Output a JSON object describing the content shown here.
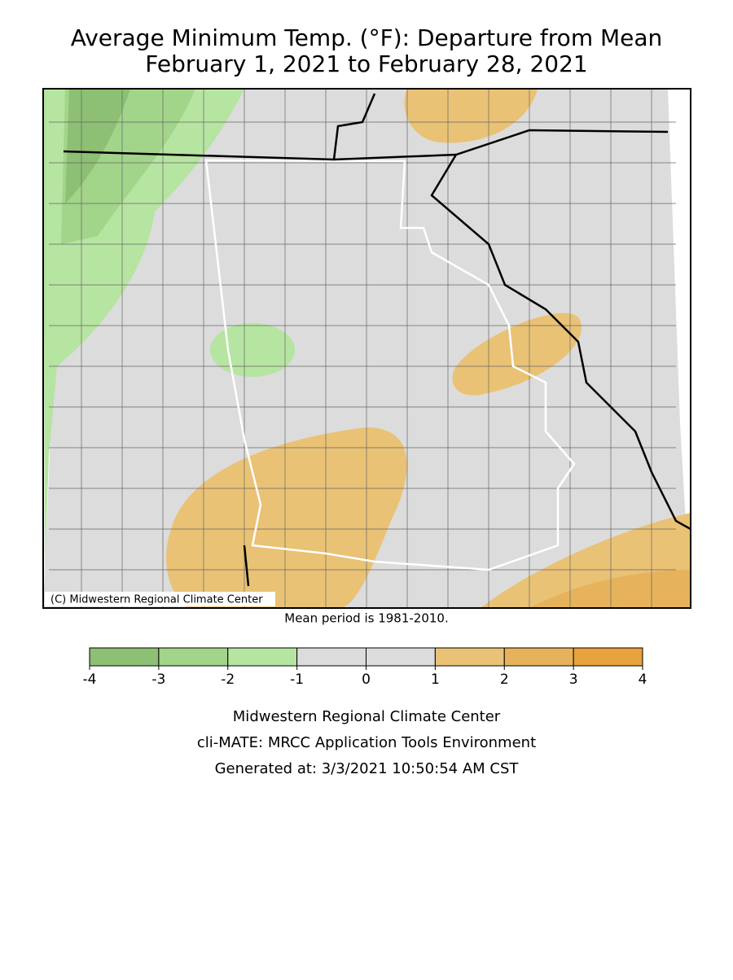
{
  "title": [
    "Average Minimum Temp. (°F): Departure from Mean",
    "February 1, 2021 to February 28, 2021"
  ],
  "map": {
    "credit": "(C) Midwestern Regional Climate Center"
  },
  "note": "Mean period is 1981-2010.",
  "legend": {
    "bins": [
      -4,
      -3,
      -2,
      -1,
      0,
      1,
      2,
      3,
      4
    ],
    "colors": [
      "#8dbf74",
      "#a2d48a",
      "#b6e4a1",
      "#dcdcdc",
      "#dcdcdc",
      "#e9c275",
      "#e6b35c",
      "#e8a23e"
    ]
  },
  "footer": [
    "Midwestern Regional Climate Center",
    "cli-MATE: MRCC Application Tools Environment",
    "Generated at: 3/3/2021 10:50:54 AM CST"
  ]
}
